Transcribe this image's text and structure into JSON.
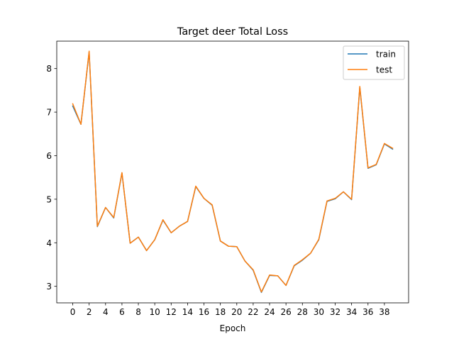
{
  "chart_data": {
    "type": "line",
    "title": "Target deer Total Loss",
    "xlabel": "Epoch",
    "ylabel": "",
    "x": [
      0,
      1,
      2,
      3,
      4,
      5,
      6,
      7,
      8,
      9,
      10,
      11,
      12,
      13,
      14,
      15,
      16,
      17,
      18,
      19,
      20,
      21,
      22,
      23,
      24,
      25,
      26,
      27,
      28,
      29,
      30,
      31,
      32,
      33,
      34,
      35,
      36,
      37,
      38,
      39
    ],
    "xlim": [
      -1.95,
      40.95
    ],
    "ylim": [
      2.62,
      8.63
    ],
    "xticks": [
      0,
      2,
      4,
      6,
      8,
      10,
      12,
      14,
      16,
      18,
      20,
      22,
      24,
      26,
      28,
      30,
      32,
      34,
      36,
      38
    ],
    "yticks": [
      3,
      4,
      5,
      6,
      7,
      8
    ],
    "grid": false,
    "legend_position": "top-right",
    "series": [
      {
        "name": "train",
        "color": "#1f77b4",
        "values": [
          7.14,
          6.72,
          8.38,
          4.37,
          4.81,
          4.57,
          5.6,
          3.99,
          4.13,
          3.82,
          4.07,
          4.52,
          4.23,
          4.38,
          4.49,
          5.29,
          5.02,
          4.86,
          4.04,
          3.92,
          3.91,
          3.58,
          3.37,
          2.86,
          3.25,
          3.24,
          3.02,
          3.47,
          3.6,
          3.76,
          4.07,
          4.95,
          5.01,
          5.17,
          4.99,
          7.57,
          5.71,
          5.79,
          6.27,
          6.15
        ]
      },
      {
        "name": "test",
        "color": "#ff7f0e",
        "values": [
          7.19,
          6.72,
          8.4,
          4.38,
          4.81,
          4.58,
          5.61,
          3.99,
          4.13,
          3.82,
          4.07,
          4.53,
          4.23,
          4.38,
          4.49,
          5.3,
          5.02,
          4.87,
          4.04,
          3.92,
          3.91,
          3.58,
          3.38,
          2.87,
          3.26,
          3.24,
          3.02,
          3.48,
          3.61,
          3.76,
          4.08,
          4.96,
          5.02,
          5.17,
          5.0,
          7.59,
          5.72,
          5.8,
          6.28,
          6.17
        ]
      }
    ]
  }
}
